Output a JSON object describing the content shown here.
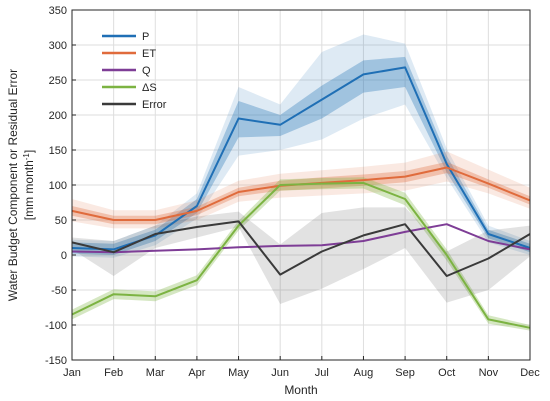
{
  "chart_data": {
    "type": "line",
    "title": "",
    "xlabel": "Month",
    "ylabel_line1": "Water Budget Component or Residual Error",
    "ylabel_line2": "[mm month",
    "ylabel_sup": "-1",
    "ylabel_close": "]",
    "categories": [
      "Jan",
      "Feb",
      "Mar",
      "Apr",
      "May",
      "Jun",
      "Jul",
      "Aug",
      "Sep",
      "Oct",
      "Nov",
      "Dec"
    ],
    "ylim": [
      -150,
      350
    ],
    "yticks": [
      -150,
      -100,
      -50,
      0,
      50,
      100,
      150,
      200,
      250,
      300,
      350
    ],
    "grid": true,
    "legend_position": "top-left",
    "series": [
      {
        "name": "P",
        "color": "#1f6fb5",
        "values": [
          10,
          8,
          28,
          70,
          195,
          186,
          222,
          258,
          268,
          130,
          30,
          10
        ],
        "inner_band": {
          "lower": [
            2,
            0,
            20,
            60,
            168,
            170,
            195,
            232,
            240,
            118,
            24,
            4
          ],
          "upper": [
            18,
            16,
            36,
            80,
            220,
            200,
            242,
            278,
            283,
            142,
            36,
            16
          ]
        },
        "outer_band": {
          "lower": [
            -2,
            -4,
            14,
            52,
            142,
            150,
            165,
            195,
            215,
            110,
            18,
            0
          ],
          "upper": [
            22,
            20,
            42,
            88,
            240,
            215,
            290,
            315,
            302,
            152,
            42,
            20
          ]
        }
      },
      {
        "name": "ET",
        "color": "#e06b3c",
        "values": [
          63,
          50,
          50,
          63,
          90,
          99,
          103,
          107,
          112,
          125,
          102,
          78
        ],
        "inner_band": {
          "lower": [
            56,
            44,
            44,
            57,
            84,
            92,
            95,
            99,
            104,
            117,
            96,
            72
          ],
          "upper": [
            70,
            56,
            56,
            69,
            96,
            106,
            111,
            115,
            120,
            133,
            108,
            84
          ]
        },
        "outer_band": {
          "lower": [
            48,
            38,
            38,
            50,
            76,
            82,
            85,
            88,
            92,
            105,
            88,
            66
          ],
          "upper": [
            80,
            64,
            64,
            78,
            106,
            116,
            121,
            126,
            132,
            148,
            122,
            96
          ]
        }
      },
      {
        "name": "Q",
        "color": "#7e3d96",
        "values": [
          5,
          4,
          6,
          8,
          11,
          13,
          14,
          20,
          33,
          44,
          20,
          8
        ],
        "inner_band": null,
        "outer_band": null
      },
      {
        "name": "ΔS",
        "color": "#7cb342",
        "values": [
          -85,
          -56,
          -59,
          -36,
          42,
          100,
          102,
          103,
          80,
          0,
          -92,
          -104
        ],
        "inner_band": {
          "lower": [
            -92,
            -63,
            -66,
            -43,
            35,
            92,
            94,
            95,
            71,
            -8,
            -98,
            -108
          ],
          "upper": [
            -78,
            -49,
            -52,
            -29,
            49,
            108,
            110,
            111,
            89,
            8,
            -86,
            -100
          ]
        },
        "outer_band": null
      },
      {
        "name": "Error",
        "color": "#3a3a3a",
        "values": [
          18,
          4,
          30,
          40,
          48,
          -28,
          5,
          28,
          44,
          -30,
          -5,
          30
        ],
        "inner_band": null,
        "outer_band": {
          "lower": [
            8,
            -30,
            10,
            25,
            40,
            -70,
            -48,
            -20,
            10,
            -68,
            -50,
            -2
          ],
          "upper": [
            25,
            20,
            42,
            55,
            62,
            15,
            60,
            68,
            68,
            5,
            35,
            42
          ]
        }
      }
    ]
  }
}
